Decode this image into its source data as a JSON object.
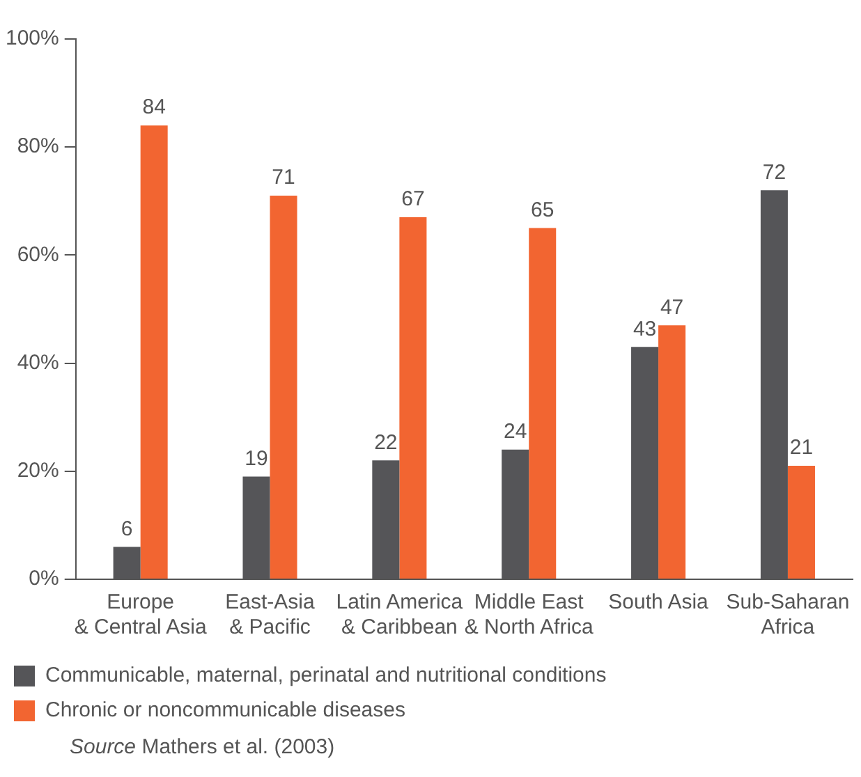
{
  "chart_data": {
    "type": "bar",
    "categories": [
      "Europe\n& Central Asia",
      "East-Asia\n& Pacific",
      "Latin America\n& Caribbean",
      "Middle East\n& North Africa",
      "South Asia",
      "Sub-Saharan\nAfrica"
    ],
    "series": [
      {
        "name": "Communicable, maternal, perinatal and nutritional conditions",
        "color": "#555558",
        "values": [
          6,
          19,
          22,
          24,
          43,
          72
        ]
      },
      {
        "name": "Chronic or noncommunicable diseases",
        "color": "#f26531",
        "values": [
          84,
          71,
          67,
          65,
          47,
          21
        ]
      }
    ],
    "ylim": [
      0,
      100
    ],
    "yticks": [
      {
        "value": 0,
        "label": "0%"
      },
      {
        "value": 20,
        "label": "20%"
      },
      {
        "value": 40,
        "label": "40%"
      },
      {
        "value": 60,
        "label": "60%"
      },
      {
        "value": 80,
        "label": "80%"
      },
      {
        "value": 100,
        "label": "100%"
      }
    ],
    "grid": false,
    "data_labels": true,
    "legend": "bottom",
    "annotations": [
      "Source Mathers et al. (2003)"
    ]
  }
}
